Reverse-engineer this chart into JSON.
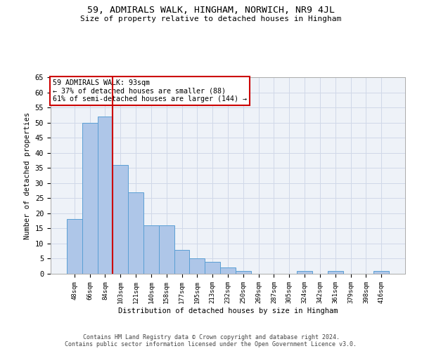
{
  "title": "59, ADMIRALS WALK, HINGHAM, NORWICH, NR9 4JL",
  "subtitle": "Size of property relative to detached houses in Hingham",
  "xlabel": "Distribution of detached houses by size in Hingham",
  "ylabel": "Number of detached properties",
  "bar_labels": [
    "48sqm",
    "66sqm",
    "84sqm",
    "103sqm",
    "121sqm",
    "140sqm",
    "158sqm",
    "177sqm",
    "195sqm",
    "213sqm",
    "232sqm",
    "250sqm",
    "269sqm",
    "287sqm",
    "305sqm",
    "324sqm",
    "342sqm",
    "361sqm",
    "379sqm",
    "398sqm",
    "416sqm"
  ],
  "bar_values": [
    18,
    50,
    52,
    36,
    27,
    16,
    16,
    8,
    5,
    4,
    2,
    1,
    0,
    0,
    0,
    1,
    0,
    1,
    0,
    0,
    1
  ],
  "bar_color": "#aec6e8",
  "bar_edge_color": "#5a9fd4",
  "property_line_x": 2.5,
  "annotation_line1": "59 ADMIRALS WALK: 93sqm",
  "annotation_line2": "← 37% of detached houses are smaller (88)",
  "annotation_line3": "61% of semi-detached houses are larger (144) →",
  "annotation_box_color": "#ffffff",
  "annotation_box_edge_color": "#cc0000",
  "vline_color": "#cc0000",
  "grid_color": "#d0d8e8",
  "background_color": "#eef2f8",
  "footer_line1": "Contains HM Land Registry data © Crown copyright and database right 2024.",
  "footer_line2": "Contains public sector information licensed under the Open Government Licence v3.0.",
  "ylim": [
    0,
    65
  ],
  "yticks": [
    0,
    5,
    10,
    15,
    20,
    25,
    30,
    35,
    40,
    45,
    50,
    55,
    60,
    65
  ]
}
